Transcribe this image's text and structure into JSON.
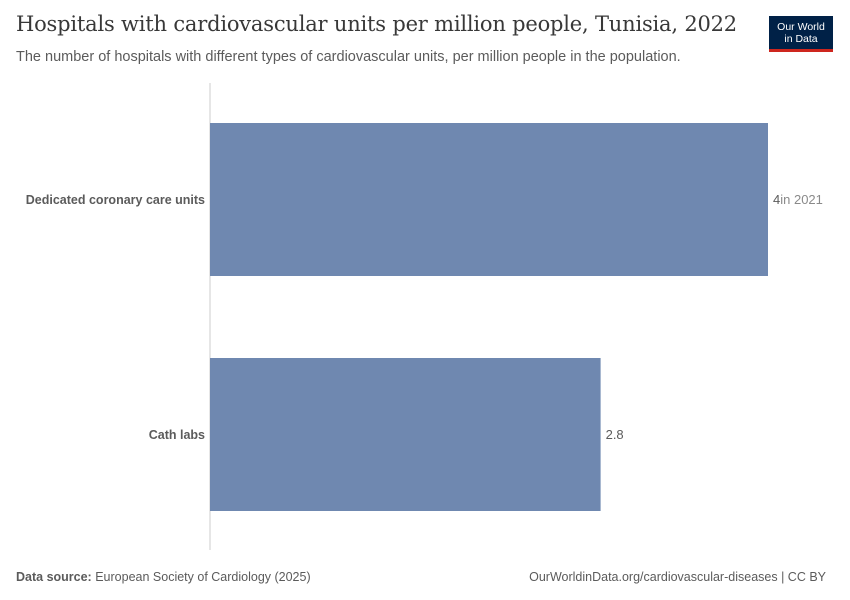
{
  "header": {
    "title": "Hospitals with cardiovascular units per million people, Tunisia, 2022",
    "subtitle": "The number of hospitals with different types of cardiovascular units, per million people in the population."
  },
  "logo": {
    "line1": "Our World",
    "line2": "in Data"
  },
  "colors": {
    "bar": "#6f88b0",
    "axis": "#cccccc",
    "label": "#5b5b5b",
    "note": "#8a8a8a",
    "logo_bg": "#002147",
    "logo_accent": "#ce261e"
  },
  "chart_data": {
    "type": "bar",
    "orientation": "horizontal",
    "categories": [
      "Dedicated coronary care units",
      "Cath labs"
    ],
    "values": [
      4,
      2.8
    ],
    "value_labels": [
      "4",
      "2.8"
    ],
    "value_notes": [
      "in 2021",
      ""
    ],
    "xlim": [
      0,
      4
    ],
    "grid": false
  },
  "footer": {
    "source_label": "Data source:",
    "source_text": "European Society of Cardiology (2025)",
    "url": "OurWorldinData.org/cardiovascular-diseases | CC BY"
  }
}
